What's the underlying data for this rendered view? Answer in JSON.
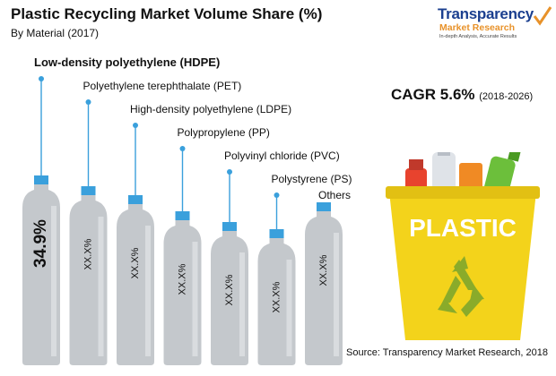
{
  "header": {
    "title": "Plastic Recycling Market Volume Share (%)",
    "subtitle": "By Material (2017)"
  },
  "logo": {
    "name_line1": "Transparency",
    "name_line2": "Market Research",
    "tagline": "In-depth Analysis, Accurate Results"
  },
  "cagr": {
    "label": "CAGR 5.6%",
    "range": "(2018-2026)"
  },
  "bin": {
    "label": "PLASTIC"
  },
  "source": "Source:  Transparency Market Research, 2018",
  "colors": {
    "bottle_body": "#c4c8cc",
    "bottle_cap": "#3aa0dc",
    "bin_yellow": "#f3d31b",
    "recycle_green": "#8aab2a"
  },
  "chart_data": {
    "type": "bar",
    "title": "Plastic Recycling Market Volume Share (%)",
    "subtitle": "By Material (2017)",
    "categories": [
      "Low-density polyethylene (HDPE)",
      "Polyethylene terephthalate (PET)",
      "High-density polyethylene (LDPE)",
      "Polypropylene (PP)",
      "Polyvinyl chloride (PVC)",
      "Polystyrene (PS)",
      "Others"
    ],
    "value_labels": [
      "34.9%",
      "XX.X%",
      "XX.X%",
      "XX.X%",
      "XX.X%",
      "XX.X%",
      "XX.X%"
    ],
    "values": [
      34.9,
      null,
      null,
      null,
      null,
      null,
      null
    ],
    "xlabel": "",
    "ylabel": "",
    "legend": "none",
    "grid": false
  }
}
